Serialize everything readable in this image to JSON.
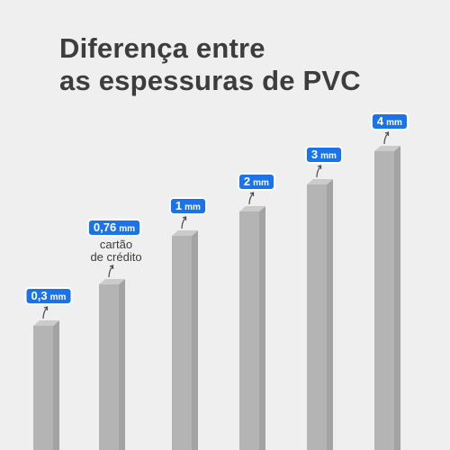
{
  "title": {
    "line1": "Diferença entre",
    "line2": "as espessuras de PVC"
  },
  "colors": {
    "background": "#efefef",
    "bar_front": "#b4b4b4",
    "bar_side": "#a3a3a3",
    "bar_top": "#cbcbcb",
    "label_bg": "#1a73e8",
    "label_border": "#ffffff",
    "title_text": "#3d3d3d"
  },
  "items": [
    {
      "value": "0,3",
      "unit": "mm",
      "thickness_mm": 0.3,
      "note": []
    },
    {
      "value": "0,76",
      "unit": "mm",
      "thickness_mm": 0.76,
      "note": [
        "cartão",
        "de crédito"
      ]
    },
    {
      "value": "1",
      "unit": "mm",
      "thickness_mm": 1,
      "note": []
    },
    {
      "value": "2",
      "unit": "mm",
      "thickness_mm": 2,
      "note": []
    },
    {
      "value": "3",
      "unit": "mm",
      "thickness_mm": 3,
      "note": []
    },
    {
      "value": "4",
      "unit": "mm",
      "thickness_mm": 4,
      "note": []
    }
  ],
  "pointer_icon": "curved-arrow-up-icon"
}
